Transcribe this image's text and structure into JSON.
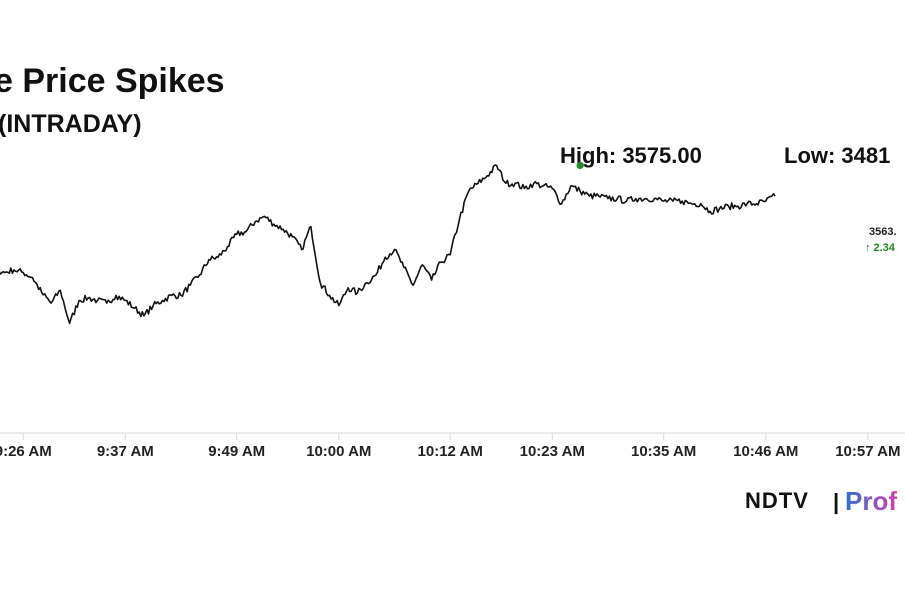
{
  "header": {
    "title": "e Price Spikes",
    "subtitle": "(INTRADAY)",
    "high_label": "High: 3575.00",
    "low_label": "Low: 3481"
  },
  "last_quote": {
    "price_text": "3563.",
    "change_text": "2.34",
    "change_arrow": "↑"
  },
  "brand": {
    "ndtv": "NDTV",
    "separator": "|",
    "profit": "Prof"
  },
  "colors": {
    "line": "#111111",
    "high_marker": "#1e8c1e",
    "change_up": "#1e8c1e",
    "grid": "#d9d9d9",
    "profit_gradient_start": "#2f6fd6",
    "profit_gradient_end": "#d63fae"
  },
  "chart_data": {
    "type": "line",
    "x_unit": "minutes after 9:15 AM",
    "x_ticks": [
      {
        "t": 11,
        "label": "9:26 AM"
      },
      {
        "t": 22,
        "label": "9:37 AM"
      },
      {
        "t": 34,
        "label": "9:49 AM"
      },
      {
        "t": 45,
        "label": "10:00 AM"
      },
      {
        "t": 57,
        "label": "10:12 AM"
      },
      {
        "t": 68,
        "label": "10:23 AM"
      },
      {
        "t": 80,
        "label": "10:35 AM"
      },
      {
        "t": 91,
        "label": "10:46 AM"
      },
      {
        "t": 102,
        "label": "10:57 AM"
      }
    ],
    "ylim": [
      3470,
      3585
    ],
    "high": 3575.0,
    "high_time_t": 71.0,
    "series": [
      {
        "values": [
          [
            0,
            3510
          ],
          [
            1,
            3518
          ],
          [
            2,
            3528
          ],
          [
            3,
            3534
          ],
          [
            4,
            3539
          ],
          [
            5,
            3536
          ],
          [
            6,
            3537
          ],
          [
            7,
            3535
          ],
          [
            8,
            3534
          ],
          [
            9,
            3533
          ],
          [
            10,
            3534
          ],
          [
            11,
            3533
          ],
          [
            12,
            3531
          ],
          [
            13,
            3525
          ],
          [
            14,
            3521
          ],
          [
            15,
            3526
          ],
          [
            16,
            3513
          ],
          [
            17,
            3522
          ],
          [
            18,
            3523
          ],
          [
            19,
            3522
          ],
          [
            20,
            3521
          ],
          [
            21,
            3524
          ],
          [
            22,
            3522
          ],
          [
            23,
            3519
          ],
          [
            24,
            3516
          ],
          [
            25,
            3520
          ],
          [
            26,
            3522
          ],
          [
            27,
            3524
          ],
          [
            28,
            3524
          ],
          [
            29,
            3528
          ],
          [
            30,
            3532
          ],
          [
            31,
            3538
          ],
          [
            32,
            3539
          ],
          [
            33,
            3543
          ],
          [
            34,
            3548
          ],
          [
            35,
            3549
          ],
          [
            36,
            3553
          ],
          [
            37,
            3555
          ],
          [
            38,
            3552
          ],
          [
            39,
            3550
          ],
          [
            40,
            3547
          ],
          [
            41,
            3542
          ],
          [
            42,
            3551
          ],
          [
            43,
            3529
          ],
          [
            44,
            3524
          ],
          [
            45,
            3520
          ],
          [
            46,
            3527
          ],
          [
            47,
            3525
          ],
          [
            48,
            3529
          ],
          [
            49,
            3532
          ],
          [
            50,
            3539
          ],
          [
            51,
            3542
          ],
          [
            52,
            3535
          ],
          [
            53,
            3528
          ],
          [
            54,
            3536
          ],
          [
            55,
            3530
          ],
          [
            56,
            3537
          ],
          [
            57,
            3540
          ],
          [
            58,
            3554
          ],
          [
            59,
            3565
          ],
          [
            60,
            3568
          ],
          [
            61,
            3571
          ],
          [
            62,
            3575
          ],
          [
            63,
            3568
          ],
          [
            64,
            3568
          ],
          [
            65,
            3566
          ],
          [
            66,
            3568
          ],
          [
            67,
            3567
          ],
          [
            68,
            3566
          ],
          [
            69,
            3560
          ],
          [
            70,
            3567
          ],
          [
            71,
            3565
          ],
          [
            72,
            3563
          ],
          [
            73,
            3563
          ],
          [
            74,
            3562
          ],
          [
            75,
            3562
          ],
          [
            76,
            3561
          ],
          [
            77,
            3562
          ],
          [
            78,
            3562
          ],
          [
            79,
            3562
          ],
          [
            80,
            3561
          ],
          [
            81,
            3561
          ],
          [
            82,
            3561
          ],
          [
            83,
            3560
          ],
          [
            84,
            3560
          ],
          [
            85,
            3557
          ],
          [
            86,
            3558
          ],
          [
            87,
            3559
          ],
          [
            88,
            3559
          ],
          [
            89,
            3560
          ],
          [
            90,
            3560
          ],
          [
            91,
            3561
          ],
          [
            92,
            3563
          ]
        ]
      }
    ],
    "grid": false,
    "legend": "none"
  }
}
